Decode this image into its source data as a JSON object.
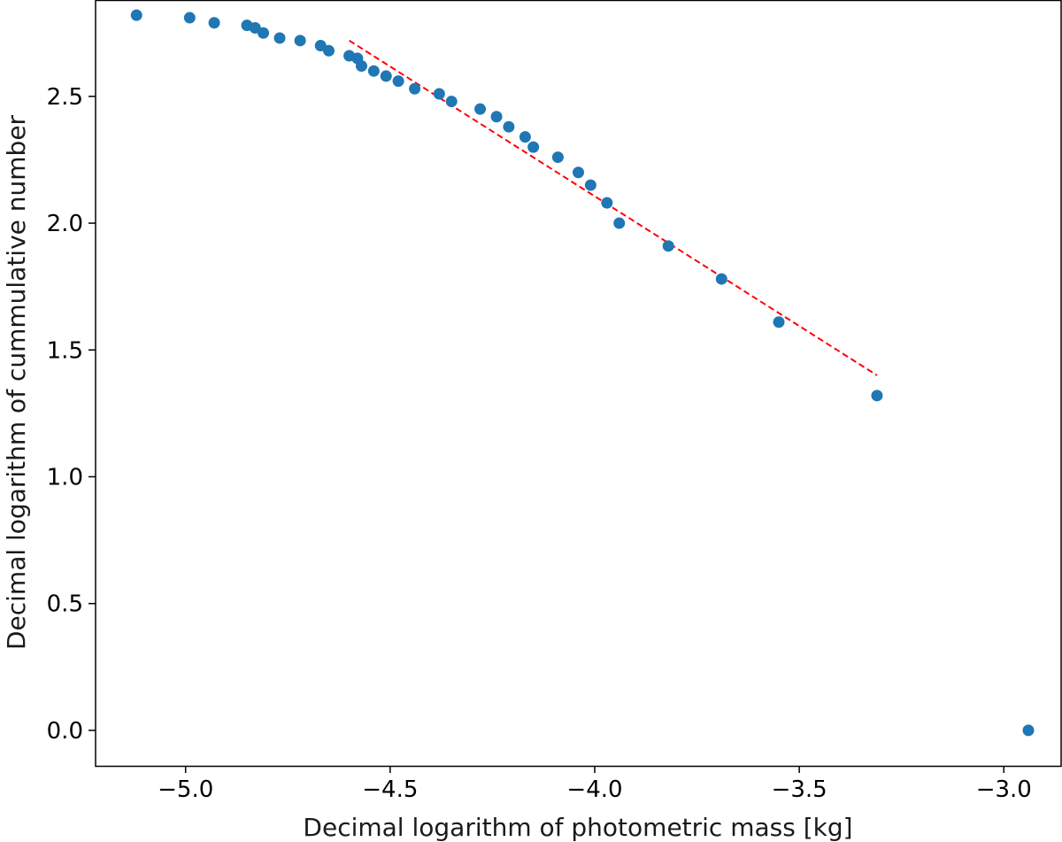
{
  "chart_data": {
    "type": "scatter",
    "title": "",
    "xlabel": "Decimal logarithm of photometric mass [kg]",
    "ylabel": "Decimal logarithm of cummulative number",
    "xlim": [
      -5.22,
      -2.86
    ],
    "ylim": [
      -0.14,
      2.88
    ],
    "grid": false,
    "xticks": [
      {
        "value": -5.0,
        "label": "−5.0"
      },
      {
        "value": -4.5,
        "label": "−4.5"
      },
      {
        "value": -4.0,
        "label": "−4.0"
      },
      {
        "value": -3.5,
        "label": "−3.5"
      },
      {
        "value": -3.0,
        "label": "−3.0"
      }
    ],
    "yticks": [
      {
        "value": 0.0,
        "label": "0.0"
      },
      {
        "value": 0.5,
        "label": "0.5"
      },
      {
        "value": 1.0,
        "label": "1.0"
      },
      {
        "value": 1.5,
        "label": "1.5"
      },
      {
        "value": 2.0,
        "label": "2.0"
      },
      {
        "value": 2.5,
        "label": "2.5"
      }
    ],
    "series": [
      {
        "name": "data",
        "kind": "scatter",
        "color": "#1f77b4",
        "points": [
          [
            -5.12,
            2.82
          ],
          [
            -4.99,
            2.81
          ],
          [
            -4.93,
            2.79
          ],
          [
            -4.85,
            2.78
          ],
          [
            -4.83,
            2.77
          ],
          [
            -4.81,
            2.75
          ],
          [
            -4.77,
            2.73
          ],
          [
            -4.72,
            2.72
          ],
          [
            -4.67,
            2.7
          ],
          [
            -4.65,
            2.68
          ],
          [
            -4.6,
            2.66
          ],
          [
            -4.58,
            2.65
          ],
          [
            -4.57,
            2.62
          ],
          [
            -4.54,
            2.6
          ],
          [
            -4.51,
            2.58
          ],
          [
            -4.48,
            2.56
          ],
          [
            -4.44,
            2.53
          ],
          [
            -4.38,
            2.51
          ],
          [
            -4.35,
            2.48
          ],
          [
            -4.28,
            2.45
          ],
          [
            -4.24,
            2.42
          ],
          [
            -4.21,
            2.38
          ],
          [
            -4.17,
            2.34
          ],
          [
            -4.15,
            2.3
          ],
          [
            -4.09,
            2.26
          ],
          [
            -4.04,
            2.2
          ],
          [
            -4.01,
            2.15
          ],
          [
            -3.97,
            2.08
          ],
          [
            -3.94,
            2.0
          ],
          [
            -3.82,
            1.91
          ],
          [
            -3.69,
            1.78
          ],
          [
            -3.55,
            1.61
          ],
          [
            -3.31,
            1.32
          ],
          [
            -2.94,
            0.0
          ]
        ]
      },
      {
        "name": "fit",
        "kind": "line",
        "color": "#ff0000",
        "dash": true,
        "points": [
          [
            -4.6,
            2.72
          ],
          [
            -3.31,
            1.4
          ]
        ]
      }
    ]
  }
}
